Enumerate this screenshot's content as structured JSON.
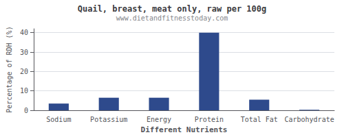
{
  "chart_data": {
    "type": "bar",
    "title": "Quail, breast, meat only, raw per 100g",
    "subtitle": "www.dietandfitnesstoday.com",
    "xlabel": "Different Nutrients",
    "ylabel": "Percentage of RDH (%)",
    "categories": [
      "Sodium",
      "Potassium",
      "Energy",
      "Protein",
      "Total Fat",
      "Carbohydrate"
    ],
    "values": [
      3.5,
      6.5,
      6.5,
      40.0,
      5.5,
      0.3
    ],
    "color": "#2e4a8c",
    "ylim": [
      0,
      42
    ],
    "yticks": [
      0,
      10,
      20,
      30,
      40
    ],
    "grid": true
  }
}
